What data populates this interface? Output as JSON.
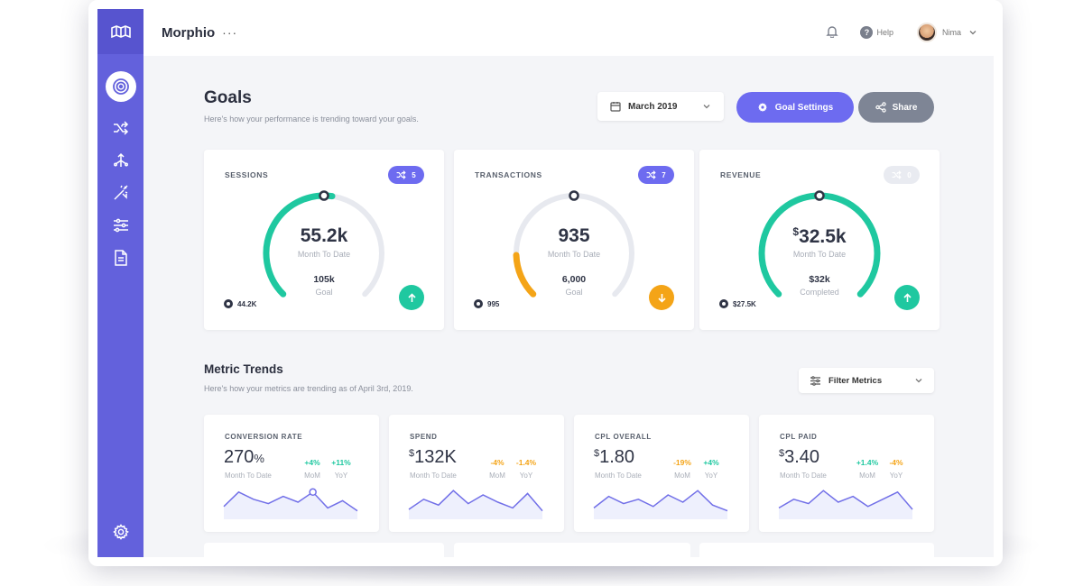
{
  "app": {
    "brand": "Morphio",
    "brand_more": "···"
  },
  "topbar": {
    "help_label": "Help",
    "user_name": "Nima"
  },
  "goals": {
    "title": "Goals",
    "subtitle": "Here's how your performance is trending toward your goals.",
    "date_label": "March 2019",
    "settings_label": "Goal Settings",
    "share_label": "Share",
    "cards": [
      {
        "label": "SESSIONS",
        "chip": "5",
        "value": "55.2k",
        "value_prefix": "",
        "value_sub": "Month To Date",
        "target": "105k",
        "target_sub": "Goal",
        "min": "44.2K",
        "trend": "up",
        "progress": 0.53,
        "color": "#1fc8a0"
      },
      {
        "label": "TRANSACTIONS",
        "chip": "7",
        "value": "935",
        "value_prefix": "",
        "value_sub": "Month To Date",
        "target": "6,000",
        "target_sub": "Goal",
        "min": "995",
        "trend": "down",
        "progress": 0.16,
        "color": "#f4a417"
      },
      {
        "label": "REVENUE",
        "chip": "0",
        "value": "32.5k",
        "value_prefix": "$",
        "value_sub": "Month To Date",
        "target": "$32k",
        "target_sub": "Completed",
        "min": "$27.5K",
        "trend": "up",
        "progress": 1.0,
        "color": "#1fc8a0"
      }
    ]
  },
  "trends": {
    "title": "Metric Trends",
    "subtitle": "Here's how your metrics are trending as of April 3rd, 2019.",
    "filter_label": "Filter Metrics",
    "cards": [
      {
        "label": "CONVERSION RATE",
        "prefix": "",
        "value": "270",
        "unit": "%",
        "sub": "Month To Date",
        "mom": "+4%",
        "yoy": "+11%",
        "mom_color": "#1fc8a0",
        "yoy_color": "#1fc8a0",
        "mom_label": "MoM",
        "yoy_label": "YoY",
        "spark": [
          0.35,
          0.85,
          0.6,
          0.45,
          0.7,
          0.5,
          0.85,
          0.3,
          0.55,
          0.2
        ],
        "marker": 6
      },
      {
        "label": "SPEND",
        "prefix": "$",
        "value": "132K",
        "unit": "",
        "sub": "Month To Date",
        "mom": "-4%",
        "yoy": "-1.4%",
        "mom_color": "#f4a417",
        "yoy_color": "#f4a417",
        "mom_label": "MoM",
        "yoy_label": "YoY",
        "spark": [
          0.25,
          0.6,
          0.4,
          0.9,
          0.45,
          0.75,
          0.5,
          0.3,
          0.8,
          0.2
        ],
        "marker": -1
      },
      {
        "label": "CPL OVERALL",
        "prefix": "$",
        "value": "1.80",
        "unit": "",
        "sub": "Month To Date",
        "mom": "-19%",
        "yoy": "+4%",
        "mom_color": "#f4a417",
        "yoy_color": "#1fc8a0",
        "mom_label": "MoM",
        "yoy_label": "YoY",
        "spark": [
          0.3,
          0.7,
          0.45,
          0.6,
          0.35,
          0.75,
          0.5,
          0.9,
          0.4,
          0.2
        ],
        "marker": -1
      },
      {
        "label": "CPL PAID",
        "prefix": "$",
        "value": "3.40",
        "unit": "",
        "sub": "Month To Date",
        "mom": "+1.4%",
        "yoy": "-4%",
        "mom_color": "#1fc8a0",
        "yoy_color": "#f4a417",
        "mom_label": "MoM",
        "yoy_label": "YoY",
        "spark": [
          0.3,
          0.6,
          0.45,
          0.9,
          0.5,
          0.7,
          0.35,
          0.6,
          0.85,
          0.25
        ],
        "marker": -1
      }
    ]
  },
  "colors": {
    "accent": "#6d6bf0",
    "sidebar": "#6361dc",
    "green": "#1fc8a0",
    "orange": "#f4a417",
    "track": "#e7e9ef"
  },
  "icons": [
    "logo-icon",
    "target-icon",
    "shuffle-icon",
    "network-icon",
    "wand-icon",
    "sliders-icon",
    "document-icon",
    "gear-icon",
    "bell-icon",
    "help-icon",
    "calendar-icon",
    "chevron-down-icon",
    "share-icon",
    "filter-icon",
    "arrow-up-icon",
    "arrow-down-icon"
  ]
}
